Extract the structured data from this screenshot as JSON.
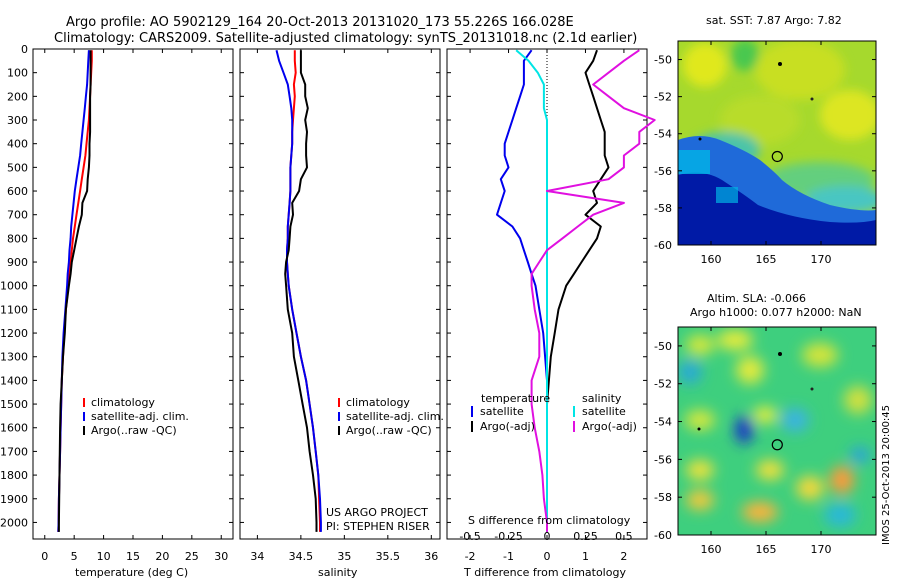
{
  "header": {
    "line1": "Argo profile: AO 5902129_164 20-Oct-2013 20131020_173 55.226S 166.028E",
    "line2": "Climatology: CARS2009. Satellite-adjusted climatology: synTS_20131018.nc (2.1d earlier)"
  },
  "colors": {
    "climatology": "#ff0000",
    "satellite": "#0000ee",
    "argo": "#000000",
    "cyan": "#00e5e5",
    "magenta": "#e010e0"
  },
  "depth_ticks": [
    "0",
    "100",
    "200",
    "300",
    "400",
    "500",
    "600",
    "700",
    "800",
    "900",
    "1000",
    "1100",
    "1200",
    "1300",
    "1400",
    "1500",
    "1600",
    "1700",
    "1800",
    "1900",
    "2000"
  ],
  "chart_data": [
    {
      "type": "line",
      "id": "temperature",
      "xlabel": "temperature (deg C)",
      "ylabel": "",
      "xlim": [
        -2,
        32
      ],
      "ylim": [
        2070,
        0
      ],
      "x_ticks": [
        "0",
        "5",
        "10",
        "15",
        "20",
        "25",
        "30"
      ],
      "legend": [
        "climatology",
        "satellite-adj. clim.",
        "Argo(..raw -QC)"
      ],
      "depth": [
        5,
        50,
        100,
        150,
        200,
        250,
        300,
        350,
        400,
        450,
        500,
        550,
        600,
        650,
        700,
        750,
        800,
        850,
        900,
        950,
        1000,
        1100,
        1200,
        1300,
        1400,
        1500,
        1600,
        1700,
        1800,
        1900,
        2000,
        2040
      ],
      "series": [
        {
          "name": "climatology",
          "color": "#ff0000",
          "x": [
            8.0,
            8.0,
            7.9,
            7.8,
            7.7,
            7.6,
            7.5,
            7.3,
            7.1,
            6.9,
            6.6,
            6.3,
            6.0,
            5.7,
            5.4,
            5.1,
            4.8,
            4.6,
            4.4,
            4.2,
            4.0,
            3.6,
            3.3,
            3.1,
            2.9,
            2.8,
            2.7,
            2.6,
            2.5,
            2.4,
            2.35,
            2.3
          ]
        },
        {
          "name": "satellite-adj. clim.",
          "color": "#0000ee",
          "x": [
            7.5,
            7.4,
            7.3,
            7.2,
            7.0,
            6.8,
            6.6,
            6.4,
            6.2,
            6.0,
            5.7,
            5.4,
            5.1,
            4.9,
            4.7,
            4.5,
            4.4,
            4.2,
            4.1,
            3.9,
            3.8,
            3.5,
            3.2,
            3.0,
            2.9,
            2.8,
            2.7,
            2.6,
            2.5,
            2.4,
            2.35,
            2.3
          ]
        },
        {
          "name": "Argo(..raw -QC)",
          "color": "#000000",
          "x": [
            7.8,
            7.8,
            7.8,
            7.8,
            7.7,
            7.7,
            7.7,
            7.7,
            7.6,
            7.6,
            7.5,
            7.3,
            7.2,
            6.4,
            6.3,
            5.8,
            5.4,
            5.0,
            4.6,
            4.4,
            4.1,
            3.6,
            3.4,
            3.1,
            2.9,
            2.7,
            2.6,
            2.55,
            2.5,
            2.45,
            2.4,
            2.4
          ]
        }
      ]
    },
    {
      "type": "line",
      "id": "salinity",
      "xlabel": "salinity",
      "ylabel": "",
      "xlim": [
        33.8,
        36.1
      ],
      "ylim": [
        2070,
        0
      ],
      "x_ticks": [
        "34",
        "34.5",
        "35",
        "35.5",
        "36"
      ],
      "legend": [
        "climatology",
        "satellite-adj. clim.",
        "Argo(..raw -QC)"
      ],
      "annotation": [
        "US ARGO PROJECT",
        "PI: STEPHEN RISER"
      ],
      "depth": [
        5,
        50,
        100,
        150,
        200,
        250,
        300,
        350,
        400,
        450,
        500,
        550,
        600,
        650,
        700,
        750,
        800,
        850,
        900,
        950,
        1000,
        1100,
        1200,
        1300,
        1400,
        1500,
        1600,
        1700,
        1800,
        1900,
        2000,
        2040
      ],
      "series": [
        {
          "name": "climatology",
          "color": "#ff0000",
          "x": [
            34.43,
            34.43,
            34.44,
            34.42,
            34.43,
            34.42,
            34.41,
            34.4,
            34.4,
            34.39,
            34.38,
            34.38,
            34.38,
            34.37,
            34.36,
            34.35,
            34.35,
            34.34,
            34.34,
            34.35,
            34.36,
            34.4,
            34.45,
            34.5,
            34.56,
            34.6,
            34.64,
            34.67,
            34.7,
            34.71,
            34.72,
            34.72
          ]
        },
        {
          "name": "satellite-adj. clim.",
          "color": "#0000ee",
          "x": [
            34.22,
            34.25,
            34.3,
            34.35,
            34.37,
            34.39,
            34.4,
            34.4,
            34.4,
            34.39,
            34.38,
            34.38,
            34.38,
            34.37,
            34.36,
            34.35,
            34.35,
            34.34,
            34.34,
            34.35,
            34.36,
            34.4,
            34.45,
            34.5,
            34.56,
            34.6,
            34.64,
            34.67,
            34.7,
            34.72,
            34.73,
            34.73
          ]
        },
        {
          "name": "Argo(..raw -QC)",
          "color": "#000000",
          "x": [
            34.5,
            34.5,
            34.5,
            34.55,
            34.55,
            34.58,
            34.55,
            34.57,
            34.56,
            34.56,
            34.57,
            34.5,
            34.48,
            34.4,
            34.41,
            34.38,
            34.37,
            34.36,
            34.33,
            34.32,
            34.33,
            34.35,
            34.4,
            34.42,
            34.47,
            34.52,
            34.57,
            34.6,
            34.64,
            34.67,
            34.68,
            34.68
          ]
        }
      ]
    },
    {
      "type": "line",
      "id": "difference",
      "xlabel": "T difference from climatology",
      "xlabel2": "S difference from climatology",
      "ylabel": "",
      "xlim": [
        -2.6,
        2.6
      ],
      "ylim": [
        2070,
        0
      ],
      "x_ticks": [
        "-2",
        "-1",
        "0",
        "1",
        "2"
      ],
      "s_ticks": [
        "-0.5",
        "-0.25",
        "0",
        "0.25",
        "0.5"
      ],
      "legend_groups": [
        "temperature",
        "salinity"
      ],
      "legend": [
        "satellite",
        "Argo(-adj)",
        "satellite",
        "Argo(-adj)"
      ],
      "depth": [
        5,
        50,
        100,
        150,
        200,
        250,
        300,
        350,
        400,
        450,
        500,
        550,
        600,
        650,
        700,
        750,
        800,
        850,
        900,
        950,
        1000,
        1100,
        1200,
        1300,
        1400,
        1500,
        1600,
        1700,
        1800,
        1900,
        2000,
        2040
      ],
      "series": [
        {
          "name": "temperature satellite",
          "color": "#0000ee",
          "x": [
            -0.4,
            -0.6,
            -0.6,
            -0.6,
            -0.7,
            -0.8,
            -0.9,
            -1.0,
            -1.1,
            -1.1,
            -1.0,
            -1.2,
            -1.1,
            -1.2,
            -1.3,
            -0.9,
            -0.7,
            -0.6,
            -0.5,
            -0.4,
            -0.3,
            -0.2,
            -0.1,
            -0.05,
            0,
            0,
            0,
            0,
            0,
            0,
            0,
            0
          ]
        },
        {
          "name": "temperature Argo(-adj)",
          "color": "#000000",
          "x": [
            1.3,
            1.2,
            1.0,
            1.1,
            1.2,
            1.3,
            1.4,
            1.5,
            1.5,
            1.5,
            1.6,
            1.4,
            1.2,
            1.3,
            1.0,
            1.4,
            1.3,
            1.1,
            0.9,
            0.7,
            0.5,
            0.3,
            0.2,
            0.1,
            0.05,
            0,
            0,
            0,
            0,
            0,
            0,
            0
          ]
        },
        {
          "name": "salinity satellite",
          "color": "#00e5e5",
          "x": [
            -0.2,
            -0.12,
            -0.06,
            -0.02,
            -0.02,
            -0.02,
            0,
            0,
            0,
            0,
            0,
            0,
            0,
            0,
            0,
            0,
            0,
            0,
            0,
            0,
            0,
            0,
            0,
            0,
            0,
            0,
            0,
            0,
            0,
            0,
            0,
            0
          ]
        },
        {
          "name": "salinity Argo(-adj)",
          "color": "#e010e0",
          "x": [
            0.6,
            0.5,
            0.4,
            0.3,
            0.4,
            0.5,
            0.7,
            0.6,
            0.6,
            0.5,
            0.5,
            0.4,
            0.0,
            0.5,
            0.3,
            0.2,
            0.1,
            0.0,
            -0.05,
            -0.1,
            -0.1,
            -0.08,
            -0.05,
            -0.05,
            -0.1,
            -0.1,
            -0.08,
            -0.05,
            -0.03,
            -0.02,
            0,
            0
          ]
        }
      ]
    },
    {
      "type": "heatmap",
      "id": "sst-map",
      "title": "sat. SST: 7.87 Argo: 7.82",
      "xlim": [
        157,
        175
      ],
      "ylim": [
        -60,
        -49
      ],
      "x_ticks": [
        "160",
        "165",
        "170"
      ],
      "y_ticks": [
        "-50",
        "-52",
        "-54",
        "-56",
        "-58",
        "-60"
      ],
      "marker": {
        "lon": 166.028,
        "lat": -55.226
      }
    },
    {
      "type": "heatmap",
      "id": "sla-map",
      "title": "Altim. SLA: -0.066",
      "subtitle": "Argo h1000: 0.077 h2000: NaN",
      "side_label": "IMOS 25-Oct-2013 20:00:45",
      "xlim": [
        157,
        175
      ],
      "ylim": [
        -60,
        -49
      ],
      "x_ticks": [
        "160",
        "165",
        "170"
      ],
      "y_ticks": [
        "-50",
        "-52",
        "-54",
        "-56",
        "-58",
        "-60"
      ],
      "marker": {
        "lon": 166.028,
        "lat": -55.226
      }
    }
  ]
}
